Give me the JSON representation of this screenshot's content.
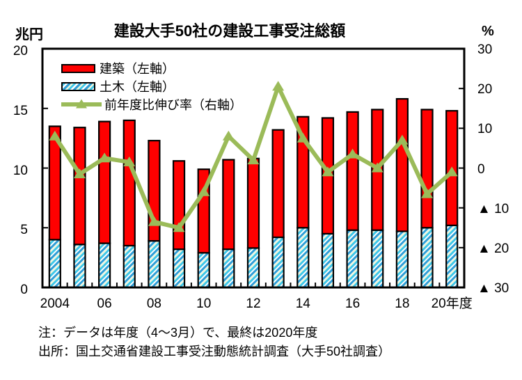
{
  "title": "建設大手50社の建設工事受注総額",
  "left_axis": {
    "unit": "兆円",
    "min": 0,
    "max": 20,
    "tick_values": [
      20,
      15,
      10,
      5,
      0
    ],
    "tick_labels": [
      "20",
      "15",
      "10",
      "5",
      "0"
    ]
  },
  "right_axis": {
    "unit": "%",
    "min": -30,
    "max": 30,
    "tick_values": [
      30,
      20,
      10,
      0,
      -10,
      -20,
      -30
    ],
    "tick_labels": [
      "30",
      "20",
      "10",
      "0",
      "▲ 10",
      "▲ 20",
      "▲ 30"
    ]
  },
  "x_axis": {
    "tick_labels": [
      {
        "text": "2004",
        "slot": 0
      },
      {
        "text": "06",
        "slot": 2
      },
      {
        "text": "08",
        "slot": 4
      },
      {
        "text": "10",
        "slot": 6
      },
      {
        "text": "12",
        "slot": 8
      },
      {
        "text": "14",
        "slot": 10
      },
      {
        "text": "16",
        "slot": 12
      },
      {
        "text": "18",
        "slot": 14
      },
      {
        "text": "20年度",
        "slot": 16
      }
    ]
  },
  "legend": [
    {
      "label": "建築（左軸）",
      "swatch": "bar-red"
    },
    {
      "label": "土木（左軸）",
      "swatch": "bar-hatched"
    },
    {
      "label": "前年度比伸び率（右軸）",
      "swatch": "line-green"
    }
  ],
  "notes": {
    "line1": "注：データは年度（4～3月）で、最終は2020年度",
    "line2": "出所：国土交通省建設工事受注動態統計調査（大手50社調査）"
  },
  "colors": {
    "bar_red": "#ff0000",
    "line_green": "#9bbb59",
    "hatch_cyan": "#3ec7e8",
    "hatch_blue": "#2e9ed7",
    "hatch_pale": "#edf7dc",
    "axis_black": "#000000",
    "background": "#ffffff"
  },
  "chart_data": {
    "type": "bar+line",
    "categories": [
      2004,
      2005,
      2006,
      2007,
      2008,
      2009,
      2010,
      2011,
      2012,
      2013,
      2014,
      2015,
      2016,
      2017,
      2018,
      2019,
      2020
    ],
    "series": [
      {
        "name": "建築（左軸）",
        "type": "bar",
        "stack": "total",
        "axis": "left",
        "color": "#ff0000",
        "values": [
          9.5,
          9.8,
          10.2,
          10.5,
          8.4,
          7.4,
          7.0,
          7.5,
          7.5,
          9.0,
          9.3,
          9.7,
          9.9,
          10.1,
          11.1,
          9.9,
          9.6
        ]
      },
      {
        "name": "土木（左軸）",
        "type": "bar",
        "stack": "total",
        "axis": "left",
        "color": "hatched-cyan-blue",
        "values": [
          4.0,
          3.6,
          3.7,
          3.5,
          3.9,
          3.2,
          2.9,
          3.2,
          3.3,
          4.2,
          5.0,
          4.5,
          4.8,
          4.8,
          4.7,
          5.0,
          5.2
        ]
      },
      {
        "name": "前年度比伸び率（右軸）",
        "type": "line",
        "axis": "right",
        "color": "#9bbb59",
        "values": [
          8,
          -1.5,
          2.5,
          1.5,
          -13.5,
          -15,
          -6,
          8,
          2,
          20.5,
          7.5,
          -1,
          3.5,
          0,
          7,
          -6.5,
          -1
        ]
      }
    ],
    "stack_totals": [
      13.5,
      13.4,
      13.9,
      14.0,
      12.3,
      10.6,
      9.9,
      10.7,
      10.8,
      13.2,
      14.3,
      14.2,
      14.7,
      14.9,
      15.8,
      14.9,
      14.8
    ],
    "left_ylim": [
      0,
      20
    ],
    "right_ylim": [
      -30,
      30
    ],
    "grid": false,
    "legend_position": "top-left-inside"
  }
}
